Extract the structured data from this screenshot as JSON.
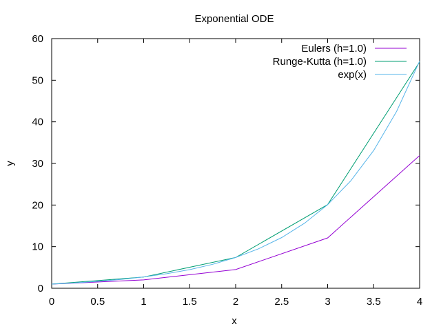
{
  "chart_data": {
    "type": "line",
    "title": "Exponential ODE",
    "xlabel": "x",
    "ylabel": "y",
    "xlim": [
      0,
      4
    ],
    "ylim": [
      0,
      60
    ],
    "xticks": [
      "0",
      "0.5",
      "1",
      "1.5",
      "2",
      "2.5",
      "3",
      "3.5",
      "4"
    ],
    "yticks": [
      "0",
      "10",
      "20",
      "30",
      "40",
      "50",
      "60"
    ],
    "grid": false,
    "legend_position": "top-right",
    "series": [
      {
        "name": "Eulers (h=1.0)",
        "color": "#9400d3",
        "x": [
          0,
          1,
          2,
          3,
          4
        ],
        "y": [
          1,
          2,
          4.5,
          12.1,
          31.9
        ]
      },
      {
        "name": "Runge-Kutta (h=1.0)",
        "color": "#009e73",
        "x": [
          0,
          1,
          2,
          3,
          4
        ],
        "y": [
          1,
          2.7,
          7.4,
          20.1,
          54.4
        ]
      },
      {
        "name": "exp(x)",
        "color": "#56b4e9",
        "x": [
          0,
          0.25,
          0.5,
          0.75,
          1,
          1.25,
          1.5,
          1.75,
          2,
          2.25,
          2.5,
          2.75,
          3,
          3.25,
          3.5,
          3.75,
          4
        ],
        "y": [
          1,
          1.28,
          1.65,
          2.12,
          2.72,
          3.49,
          4.48,
          5.75,
          7.39,
          9.49,
          12.18,
          15.64,
          20.09,
          25.79,
          33.12,
          42.52,
          54.6
        ]
      }
    ]
  }
}
